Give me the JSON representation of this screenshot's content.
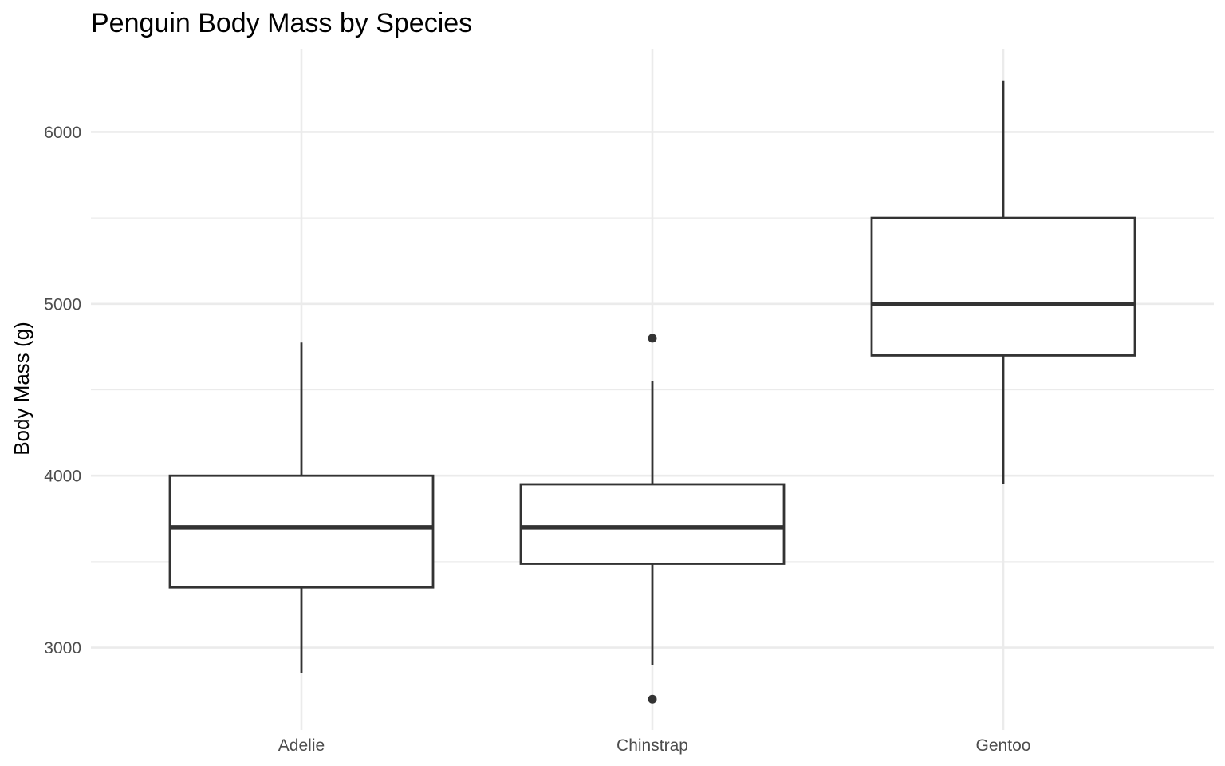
{
  "chart_data": {
    "type": "boxplot",
    "title": "Penguin Body Mass by Species",
    "xlabel": "",
    "ylabel": "Body Mass (g)",
    "categories": [
      "Adelie",
      "Chinstrap",
      "Gentoo"
    ],
    "ylim": [
      2520,
      6480
    ],
    "y_major_ticks": [
      3000,
      4000,
      5000,
      6000
    ],
    "y_minor_ticks": [
      3500,
      4500,
      5500
    ],
    "grid": true,
    "legend": "none",
    "boxes": [
      {
        "category": "Adelie",
        "whisker_low": 2850,
        "q1": 3350,
        "median": 3700,
        "q3": 4000,
        "whisker_high": 4775,
        "outliers": []
      },
      {
        "category": "Chinstrap",
        "whisker_low": 2900,
        "q1": 3488,
        "median": 3700,
        "q3": 3950,
        "whisker_high": 4550,
        "outliers": [
          2700,
          4800
        ]
      },
      {
        "category": "Gentoo",
        "whisker_low": 3950,
        "q1": 4700,
        "median": 5000,
        "q3": 5500,
        "whisker_high": 6300,
        "outliers": []
      }
    ],
    "colors": {
      "grid": "#ebebeb",
      "box_stroke": "#333333",
      "box_fill": "#ffffff",
      "point": "#333333"
    }
  }
}
